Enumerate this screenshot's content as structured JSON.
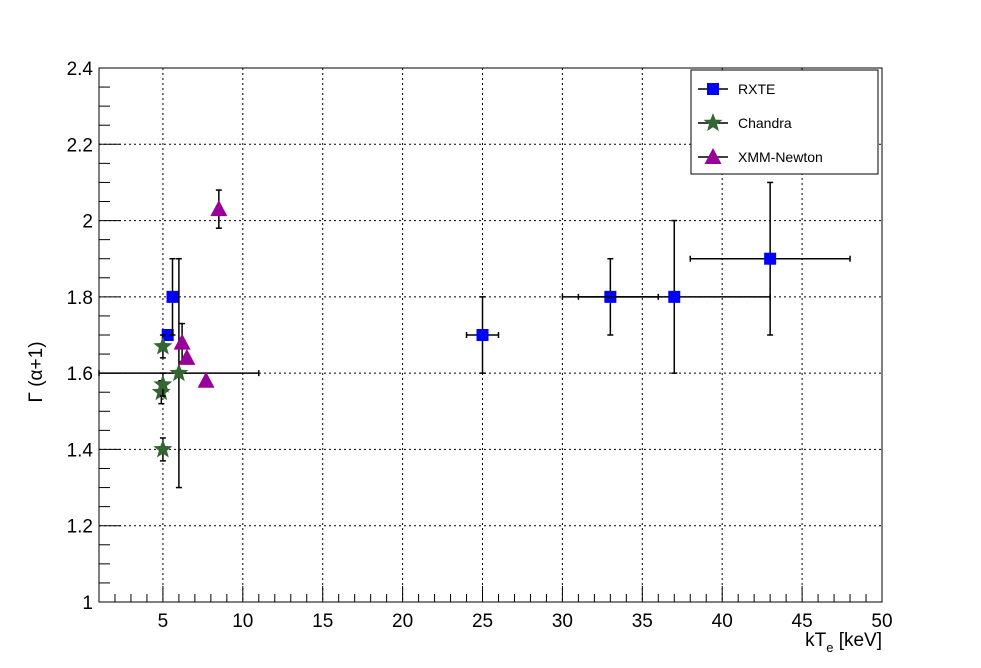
{
  "chart_data": {
    "type": "scatter",
    "title": "",
    "xlabel": {
      "main": "kT",
      "sub": "e",
      "unit": " [keV]"
    },
    "ylabel": "Γ (α+1)",
    "xlim": [
      1,
      50
    ],
    "ylim": [
      1,
      2.4
    ],
    "x_ticks": [
      "5",
      "10",
      "15",
      "20",
      "25",
      "30",
      "35",
      "40",
      "45",
      "50"
    ],
    "y_ticks": [
      "1",
      "1.2",
      "1.4",
      "1.6",
      "1.8",
      "2",
      "2.2",
      "2.4"
    ],
    "grid": true,
    "legend_position": "top-right",
    "series": [
      {
        "name": "RXTE",
        "marker": "square",
        "color": "#0000ff",
        "points": [
          {
            "x": 5.3,
            "y": 1.7,
            "xerr": 0,
            "yerr": 0
          },
          {
            "x": 5.6,
            "y": 1.8,
            "xerr": 0,
            "yerr": 0.1
          },
          {
            "x": 25,
            "y": 1.7,
            "xerr": 1,
            "yerr": 0.1
          },
          {
            "x": 33,
            "y": 1.8,
            "xerr": 3,
            "yerr": 0.1
          },
          {
            "x": 37,
            "y": 1.8,
            "xerr": 6,
            "yerr": 0.2
          },
          {
            "x": 43,
            "y": 1.9,
            "xerr": 5,
            "yerr": 0.2
          }
        ]
      },
      {
        "name": "Chandra",
        "marker": "star",
        "color": "#336633",
        "points": [
          {
            "x": 5.0,
            "y": 1.4,
            "xerr": 0,
            "yerr": 0.03
          },
          {
            "x": 4.9,
            "y": 1.55,
            "xerr": 0,
            "yerr": 0.03
          },
          {
            "x": 5.0,
            "y": 1.57,
            "xerr": 0,
            "yerr": 0.03
          },
          {
            "x": 5.0,
            "y": 1.67,
            "xerr": 0,
            "yerr": 0.03
          },
          {
            "x": 6.0,
            "y": 1.6,
            "xerr": 5,
            "yerr": 0.3
          }
        ]
      },
      {
        "name": "XMM-Newton",
        "marker": "triangle",
        "color": "#990099",
        "points": [
          {
            "x": 8.5,
            "y": 2.03,
            "xerr": 0,
            "yerr": 0.05
          },
          {
            "x": 6.2,
            "y": 1.68,
            "xerr": 0,
            "yerr": 0.05
          },
          {
            "x": 6.5,
            "y": 1.64,
            "xerr": 0,
            "yerr": 0
          },
          {
            "x": 7.7,
            "y": 1.58,
            "xerr": 0,
            "yerr": 0
          }
        ]
      }
    ]
  }
}
